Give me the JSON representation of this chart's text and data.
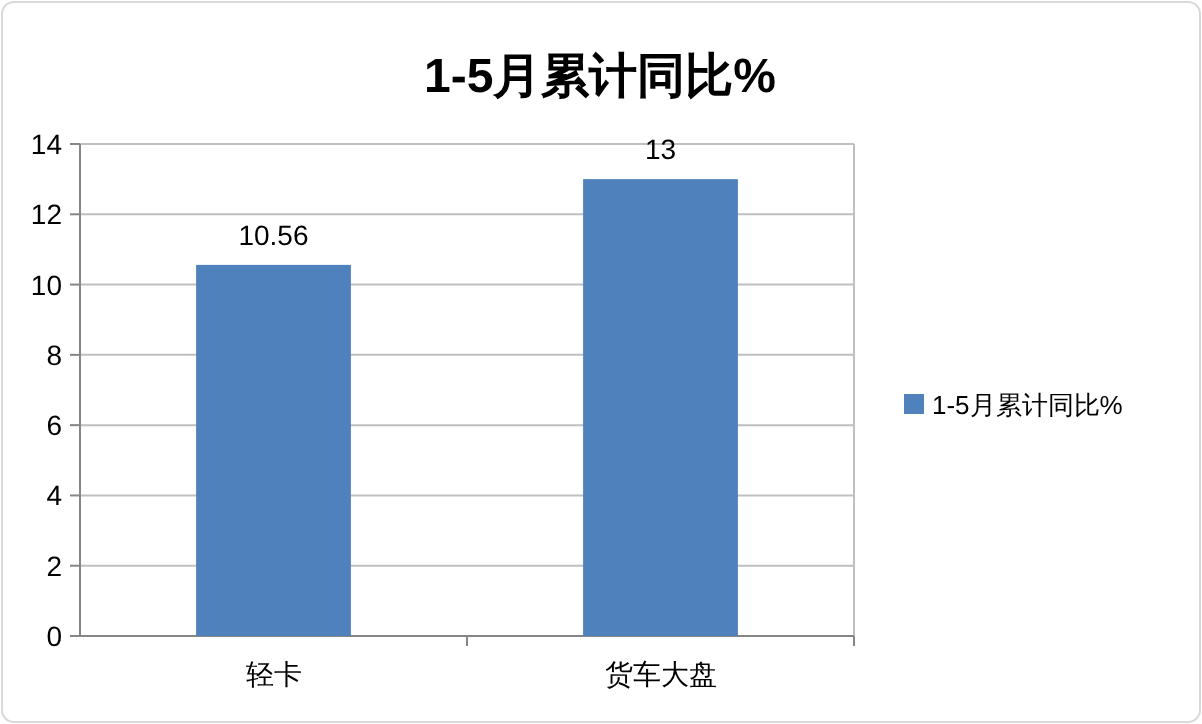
{
  "chart_data": {
    "type": "bar",
    "title": "1-5月累计同比%",
    "categories": [
      "轻卡",
      "货车大盘"
    ],
    "series": [
      {
        "name": "1-5月累计同比%",
        "color": "#4f81bd",
        "values": [
          10.56,
          13
        ]
      }
    ],
    "ylim": [
      0,
      14
    ],
    "yticks": [
      0,
      2,
      4,
      6,
      8,
      10,
      12,
      14
    ],
    "grid": "y",
    "legend": "right",
    "data_labels": true
  }
}
